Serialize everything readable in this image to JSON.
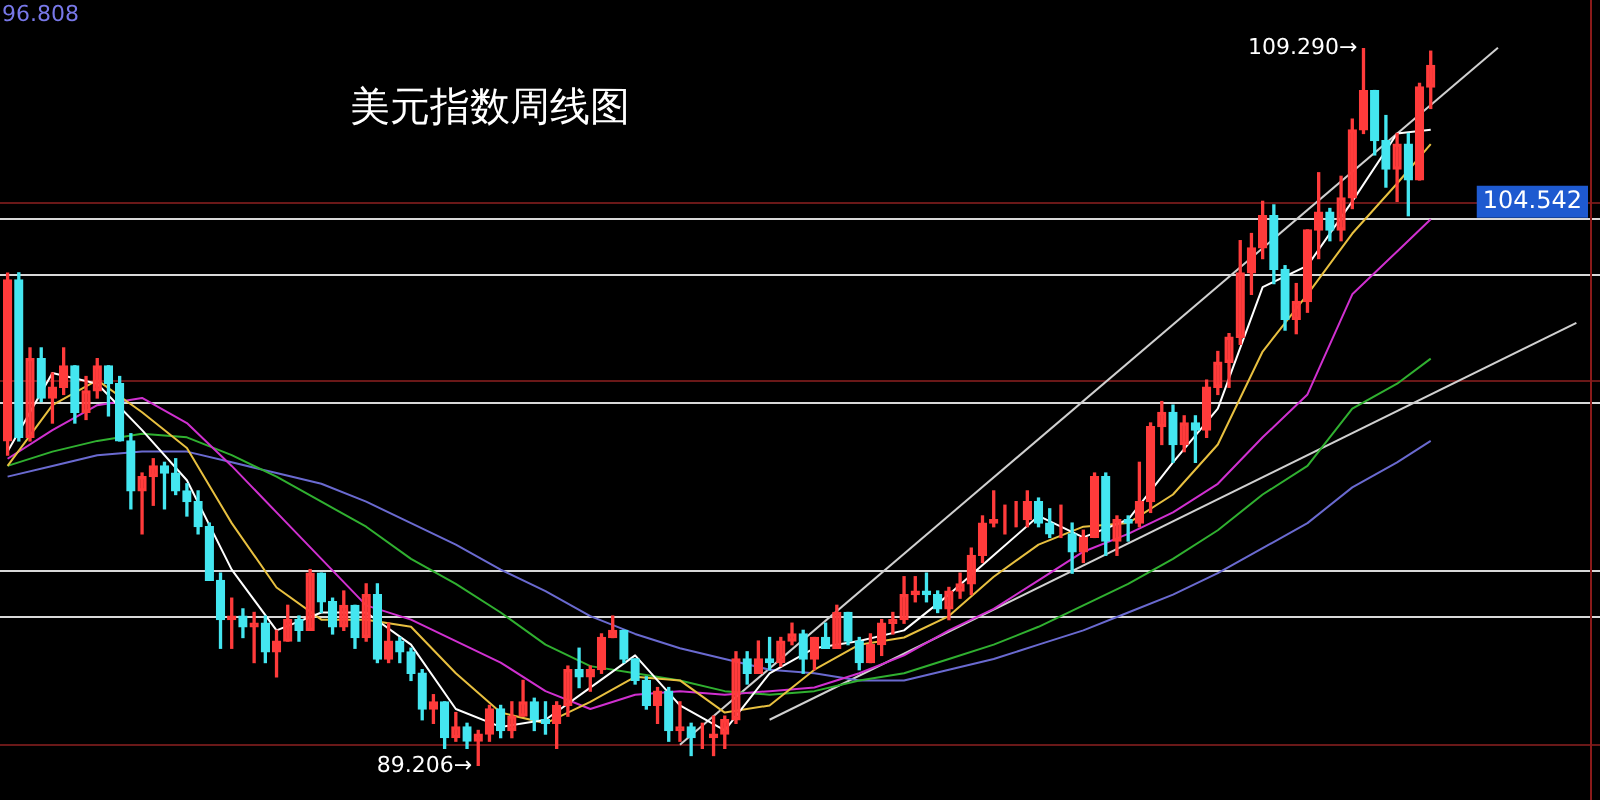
{
  "chart_data": {
    "type": "candlestick",
    "title": "美元指数周线图",
    "categories": [
      null,
      null,
      null,
      null,
      null,
      null,
      null,
      null,
      null,
      null,
      null,
      null,
      null,
      null,
      null,
      null,
      null,
      null,
      null,
      null,
      null,
      null,
      null,
      null,
      null,
      null,
      null,
      null,
      null,
      null,
      null,
      null,
      null,
      null,
      null,
      null,
      null,
      null,
      null,
      null,
      null,
      null,
      null,
      null,
      null,
      null,
      null,
      null,
      null,
      null,
      null,
      null,
      null,
      null,
      null,
      null,
      null,
      null,
      null,
      null,
      null,
      null,
      null,
      null,
      null,
      null,
      null,
      null,
      null,
      null,
      null,
      null,
      null,
      null,
      null,
      null,
      null,
      null,
      null,
      null,
      null,
      null,
      null,
      null,
      null,
      null,
      null,
      null,
      null,
      null,
      null,
      null,
      null,
      null,
      null,
      null,
      null,
      null,
      null,
      null,
      null,
      null,
      null,
      null,
      null,
      null,
      null,
      null,
      null,
      null,
      null,
      null,
      null,
      null,
      null,
      null,
      null,
      null,
      null,
      null,
      null,
      null,
      null,
      null,
      null,
      null,
      null,
      null,
      null,
      null,
      null,
      null,
      null,
      null,
      null,
      null,
      null,
      null,
      null,
      null,
      null
    ],
    "ohlc": [
      [
        98.3,
        102.99,
        97.9,
        102.8
      ],
      [
        102.8,
        103.0,
        98.3,
        98.4
      ],
      [
        98.4,
        100.9,
        98.3,
        100.6
      ],
      [
        100.6,
        100.9,
        99.4,
        99.5
      ],
      [
        99.5,
        100.2,
        98.8,
        99.8
      ],
      [
        99.8,
        100.9,
        99.6,
        100.4
      ],
      [
        100.4,
        100.4,
        98.8,
        99.1
      ],
      [
        99.1,
        100.1,
        98.9,
        99.7
      ],
      [
        99.7,
        100.6,
        99.5,
        100.4
      ],
      [
        100.4,
        100.4,
        99.0,
        99.9
      ],
      [
        99.9,
        100.1,
        98.3,
        98.3
      ],
      [
        98.3,
        98.5,
        96.4,
        96.9
      ],
      [
        96.9,
        97.4,
        95.7,
        97.3
      ],
      [
        97.3,
        97.8,
        96.5,
        97.6
      ],
      [
        97.6,
        97.7,
        96.4,
        97.4
      ],
      [
        97.4,
        97.8,
        96.8,
        96.9
      ],
      [
        96.9,
        97.1,
        96.2,
        96.6
      ],
      [
        96.6,
        96.9,
        95.7,
        95.9
      ],
      [
        95.9,
        96.0,
        94.4,
        94.4
      ],
      [
        94.4,
        94.6,
        92.5,
        93.3
      ],
      [
        93.3,
        93.9,
        92.5,
        93.4
      ],
      [
        93.4,
        93.6,
        92.8,
        93.1
      ],
      [
        93.1,
        93.5,
        92.1,
        93.2
      ],
      [
        93.2,
        93.4,
        92.1,
        92.4
      ],
      [
        92.4,
        93.0,
        91.7,
        92.7
      ],
      [
        92.7,
        93.7,
        92.7,
        93.3
      ],
      [
        93.3,
        93.4,
        92.7,
        93.0
      ],
      [
        93.0,
        94.7,
        93.0,
        94.6
      ],
      [
        94.6,
        94.6,
        93.5,
        93.8
      ],
      [
        93.8,
        93.9,
        92.9,
        93.1
      ],
      [
        93.1,
        94.1,
        93.0,
        93.7
      ],
      [
        93.7,
        93.7,
        92.5,
        92.8
      ],
      [
        92.8,
        94.3,
        92.7,
        94.0
      ],
      [
        94.0,
        94.3,
        92.1,
        92.2
      ],
      [
        92.2,
        93.2,
        92.1,
        92.7
      ],
      [
        92.7,
        92.8,
        92.1,
        92.4
      ],
      [
        92.4,
        92.5,
        91.6,
        91.8
      ],
      [
        91.8,
        91.9,
        90.5,
        90.8
      ],
      [
        90.8,
        91.2,
        90.4,
        91.0
      ],
      [
        91.0,
        91.0,
        89.7,
        90.0
      ],
      [
        90.0,
        90.7,
        89.9,
        90.3
      ],
      [
        90.3,
        90.4,
        89.7,
        89.9
      ],
      [
        89.9,
        90.2,
        89.206,
        90.1
      ],
      [
        90.1,
        90.9,
        89.9,
        90.8
      ],
      [
        90.8,
        90.9,
        90.0,
        90.2
      ],
      [
        90.2,
        91.0,
        90.0,
        90.6
      ],
      [
        90.6,
        91.6,
        90.6,
        91.0
      ],
      [
        91.0,
        91.1,
        90.2,
        90.5
      ],
      [
        90.5,
        91.0,
        90.1,
        90.4
      ],
      [
        90.4,
        91.0,
        89.7,
        90.9
      ],
      [
        90.9,
        92.0,
        90.6,
        91.9
      ],
      [
        91.9,
        92.5,
        91.4,
        91.7
      ],
      [
        91.7,
        92.0,
        91.3,
        91.9
      ],
      [
        91.9,
        92.9,
        91.8,
        92.8
      ],
      [
        92.8,
        93.4,
        92.8,
        93.0
      ],
      [
        93.0,
        93.0,
        92.1,
        92.2
      ],
      [
        92.2,
        92.2,
        91.5,
        91.6
      ],
      [
        91.6,
        91.7,
        90.8,
        90.9
      ],
      [
        90.9,
        91.4,
        90.4,
        91.3
      ],
      [
        91.3,
        91.4,
        89.9,
        90.2
      ],
      [
        90.2,
        91.0,
        89.9,
        90.3
      ],
      [
        90.3,
        90.4,
        89.5,
        90.0
      ],
      [
        90.0,
        90.4,
        89.7,
        90.0
      ],
      [
        90.0,
        90.6,
        89.5,
        90.1
      ],
      [
        90.1,
        90.6,
        89.7,
        90.5
      ],
      [
        90.5,
        92.4,
        90.4,
        92.2
      ],
      [
        92.2,
        92.4,
        91.5,
        91.8
      ],
      [
        91.8,
        92.7,
        91.8,
        92.2
      ],
      [
        92.2,
        92.8,
        91.9,
        92.1
      ],
      [
        92.1,
        92.8,
        92.0,
        92.7
      ],
      [
        92.7,
        93.2,
        92.6,
        92.9
      ],
      [
        92.9,
        93.0,
        91.8,
        92.2
      ],
      [
        92.2,
        92.8,
        91.9,
        92.8
      ],
      [
        92.8,
        93.2,
        92.5,
        92.5
      ],
      [
        92.5,
        93.7,
        92.5,
        93.5
      ],
      [
        93.5,
        93.5,
        92.6,
        92.7
      ],
      [
        92.7,
        92.8,
        91.9,
        92.1
      ],
      [
        92.1,
        92.9,
        92.1,
        92.6
      ],
      [
        92.6,
        93.3,
        92.3,
        93.2
      ],
      [
        93.2,
        93.5,
        92.9,
        93.3
      ],
      [
        93.3,
        94.5,
        93.2,
        94.0
      ],
      [
        94.0,
        94.5,
        93.8,
        94.1
      ],
      [
        94.1,
        94.6,
        93.8,
        94.0
      ],
      [
        94.0,
        94.1,
        93.5,
        93.6
      ],
      [
        93.6,
        94.2,
        93.3,
        94.1
      ],
      [
        94.1,
        94.6,
        93.9,
        94.3
      ],
      [
        94.3,
        95.3,
        94.0,
        95.1
      ],
      [
        95.1,
        96.2,
        94.9,
        96.0
      ],
      [
        96.0,
        96.9,
        95.9,
        96.1
      ],
      [
        96.1,
        96.5,
        95.7,
        96.1
      ],
      [
        96.1,
        96.6,
        95.9,
        96.1
      ],
      [
        96.1,
        96.9,
        95.9,
        96.6
      ],
      [
        96.6,
        96.7,
        95.9,
        96.0
      ],
      [
        96.0,
        96.4,
        95.6,
        95.7
      ],
      [
        95.7,
        96.5,
        95.6,
        95.7
      ],
      [
        95.7,
        96.0,
        94.6,
        95.2
      ],
      [
        95.2,
        95.8,
        94.9,
        95.6
      ],
      [
        95.6,
        97.4,
        95.6,
        97.3
      ],
      [
        97.3,
        97.4,
        95.1,
        95.5
      ],
      [
        95.5,
        96.2,
        95.1,
        96.1
      ],
      [
        96.1,
        96.2,
        95.5,
        96.0
      ],
      [
        96.0,
        97.7,
        95.9,
        96.6
      ],
      [
        96.6,
        98.8,
        96.3,
        98.7
      ],
      [
        98.7,
        99.4,
        98.2,
        99.1
      ],
      [
        99.1,
        99.3,
        97.7,
        98.2
      ],
      [
        98.2,
        99.0,
        98.0,
        98.8
      ],
      [
        98.8,
        99.0,
        97.7,
        98.6
      ],
      [
        98.6,
        100.0,
        98.4,
        99.8
      ],
      [
        99.8,
        100.8,
        99.6,
        100.5
      ],
      [
        100.5,
        101.3,
        99.8,
        101.2
      ],
      [
        101.2,
        103.9,
        101.0,
        103.0
      ],
      [
        103.0,
        104.1,
        102.4,
        103.7
      ],
      [
        103.7,
        105.0,
        103.4,
        104.6
      ],
      [
        104.6,
        104.9,
        102.7,
        103.1
      ],
      [
        103.1,
        103.2,
        101.4,
        101.7
      ],
      [
        101.7,
        102.7,
        101.3,
        102.2
      ],
      [
        102.2,
        104.2,
        101.9,
        104.2
      ],
      [
        104.2,
        105.8,
        103.4,
        104.7
      ],
      [
        104.7,
        104.8,
        103.9,
        104.2
      ],
      [
        104.2,
        105.7,
        103.9,
        105.1
      ],
      [
        105.1,
        107.3,
        104.8,
        107.0
      ],
      [
        107.0,
        109.29,
        106.9,
        108.1
      ],
      [
        108.1,
        108.1,
        106.3,
        106.7
      ],
      [
        106.7,
        107.4,
        105.4,
        105.9
      ],
      [
        105.9,
        106.9,
        105.0,
        106.6
      ],
      [
        106.6,
        106.9,
        104.6,
        105.6
      ],
      [
        105.6,
        108.3,
        105.6,
        108.2
      ],
      [
        108.2,
        109.2,
        107.6,
        108.8
      ],
      null,
      null,
      null,
      null,
      null,
      null,
      null,
      null,
      null,
      null,
      null,
      null,
      null
    ],
    "colors": [
      "#ff3b3b",
      "#44e6f0",
      "#ff3b3b",
      "#44e6f0",
      "#ff3b3b",
      "#ff3b3b",
      "#44e6f0",
      "#ff3b3b",
      "#ff3b3b",
      "#44e6f0",
      "#44e6f0",
      "#44e6f0",
      "#ff3b3b",
      "#ff3b3b",
      "#44e6f0",
      "#44e6f0",
      "#44e6f0",
      "#44e6f0",
      "#44e6f0",
      "#44e6f0",
      "#ff3b3b",
      "#44e6f0",
      "#ff3b3b",
      "#44e6f0",
      "#ff3b3b",
      "#ff3b3b",
      "#44e6f0",
      "#ff3b3b",
      "#44e6f0",
      "#44e6f0",
      "#ff3b3b",
      "#44e6f0",
      "#ff3b3b",
      "#44e6f0",
      "#ff3b3b",
      "#44e6f0",
      "#44e6f0",
      "#44e6f0",
      "#ff3b3b",
      "#44e6f0",
      "#ff3b3b",
      "#44e6f0",
      "#ff3b3b",
      "#ff3b3b",
      "#44e6f0",
      "#ff3b3b",
      "#ff3b3b",
      "#44e6f0",
      "#44e6f0",
      "#ff3b3b",
      "#ff3b3b",
      "#44e6f0",
      "#ff3b3b",
      "#ff3b3b",
      "#ff3b3b",
      "#44e6f0",
      "#44e6f0",
      "#44e6f0",
      "#ff3b3b",
      "#44e6f0",
      "#ff3b3b",
      "#44e6f0",
      "#ff3b3b",
      "#ff3b3b",
      "#ff3b3b",
      "#ff3b3b",
      "#44e6f0",
      "#ff3b3b",
      "#44e6f0",
      "#ff3b3b",
      "#ff3b3b",
      "#44e6f0",
      "#ff3b3b",
      "#44e6f0",
      "#ff3b3b",
      "#44e6f0",
      "#44e6f0",
      "#ff3b3b",
      "#ff3b3b",
      "#ff3b3b",
      "#ff3b3b",
      "#ff3b3b",
      "#44e6f0",
      "#44e6f0",
      "#ff3b3b",
      "#ff3b3b",
      "#ff3b3b",
      "#ff3b3b",
      "#ff3b3b",
      "#ff3b3b",
      "#ff3b3b",
      "#ff3b3b",
      "#44e6f0",
      "#44e6f0",
      "#ff3b3b",
      "#44e6f0",
      "#ff3b3b",
      "#ff3b3b",
      "#44e6f0",
      "#ff3b3b",
      "#44e6f0",
      "#ff3b3b",
      "#ff3b3b",
      "#ff3b3b",
      "#44e6f0",
      "#ff3b3b",
      "#44e6f0",
      "#ff3b3b",
      "#ff3b3b",
      "#ff3b3b",
      "#ff3b3b",
      "#ff3b3b",
      "#ff3b3b",
      "#44e6f0",
      "#44e6f0",
      "#ff3b3b",
      "#ff3b3b",
      "#ff3b3b",
      "#44e6f0",
      "#ff3b3b",
      "#ff3b3b",
      "#ff3b3b",
      "#44e6f0",
      "#44e6f0",
      "#ff3b3b",
      "#44e6f0",
      "#ff3b3b",
      "#ff3b3b",
      null,
      null,
      null,
      null,
      null,
      null,
      null,
      null,
      null,
      null,
      null,
      null,
      null
    ],
    "series": [
      {
        "type": "line",
        "color": "#ffffff",
        "values": [
          98.0,
          null,
          null,
          null,
          100.2,
          null,
          null,
          null,
          99.9,
          null,
          null,
          null,
          98.6,
          null,
          null,
          null,
          97.2,
          null,
          null,
          null,
          94.7,
          null,
          null,
          null,
          93.0,
          null,
          null,
          null,
          93.5,
          null,
          null,
          null,
          93.5,
          null,
          null,
          null,
          92.6,
          null,
          null,
          null,
          90.8,
          null,
          null,
          null,
          90.3,
          null,
          null,
          null,
          90.5,
          null,
          null,
          null,
          91.4,
          null,
          null,
          null,
          92.3,
          null,
          null,
          null,
          90.9,
          null,
          null,
          null,
          90.2,
          null,
          null,
          null,
          91.8,
          null,
          null,
          null,
          92.5,
          null,
          null,
          null,
          92.7,
          null,
          null,
          null,
          93.0,
          null,
          null,
          null,
          94.0,
          null,
          null,
          null,
          95.1,
          null,
          null,
          null,
          96.2,
          null,
          null,
          null,
          95.6,
          null,
          null,
          null,
          96.1,
          null,
          null,
          null,
          97.7,
          null,
          null,
          null,
          99.2,
          null,
          null,
          null,
          102.6,
          null,
          null,
          null,
          103.2,
          null,
          null,
          null,
          105.0,
          null,
          null,
          null,
          106.9,
          null,
          null,
          107.0,
          null,
          null,
          null,
          null,
          null,
          null,
          null,
          null,
          null,
          null,
          null,
          null,
          null
        ]
      },
      {
        "type": "line",
        "color": "#e8c040",
        "values": [
          97.6,
          null,
          null,
          null,
          99.3,
          null,
          null,
          null,
          100.0,
          null,
          null,
          null,
          99.1,
          null,
          null,
          null,
          98.1,
          null,
          null,
          null,
          96.0,
          null,
          null,
          null,
          94.2,
          null,
          null,
          null,
          93.3,
          null,
          null,
          null,
          93.3,
          null,
          null,
          null,
          93.1,
          null,
          null,
          null,
          91.8,
          null,
          null,
          null,
          90.7,
          null,
          null,
          null,
          90.4,
          null,
          null,
          null,
          91.0,
          null,
          null,
          null,
          91.7,
          null,
          null,
          null,
          91.6,
          null,
          null,
          null,
          90.7,
          null,
          null,
          null,
          90.9,
          null,
          null,
          null,
          91.9,
          null,
          null,
          null,
          92.6,
          null,
          null,
          null,
          92.8,
          null,
          null,
          null,
          93.4,
          null,
          null,
          null,
          94.5,
          null,
          null,
          null,
          95.4,
          null,
          null,
          null,
          95.9,
          null,
          null,
          null,
          96.0,
          null,
          null,
          null,
          96.8,
          null,
          null,
          null,
          98.2,
          null,
          null,
          null,
          100.8,
          null,
          null,
          null,
          102.4,
          null,
          null,
          null,
          104.1,
          null,
          null,
          null,
          105.5,
          null,
          null,
          106.6,
          null,
          null,
          null,
          null,
          null,
          null,
          null,
          null,
          null,
          null,
          null,
          null,
          null
        ]
      },
      {
        "type": "line",
        "color": "#d030d0",
        "values": [
          97.8,
          null,
          null,
          null,
          98.6,
          null,
          null,
          null,
          99.3,
          null,
          null,
          null,
          99.5,
          null,
          null,
          null,
          98.8,
          null,
          null,
          null,
          97.6,
          null,
          null,
          null,
          96.3,
          null,
          null,
          null,
          95.0,
          null,
          null,
          null,
          93.7,
          null,
          null,
          null,
          93.3,
          null,
          null,
          null,
          92.7,
          null,
          null,
          null,
          92.1,
          null,
          null,
          null,
          91.3,
          null,
          null,
          null,
          90.8,
          null,
          null,
          null,
          91.2,
          null,
          null,
          null,
          91.3,
          null,
          null,
          null,
          91.2,
          null,
          null,
          null,
          91.3,
          null,
          null,
          null,
          91.4,
          null,
          null,
          null,
          91.8,
          null,
          null,
          null,
          92.3,
          null,
          null,
          null,
          93.0,
          null,
          null,
          null,
          93.6,
          null,
          null,
          null,
          94.4,
          null,
          null,
          null,
          95.2,
          null,
          null,
          null,
          95.7,
          null,
          null,
          null,
          96.3,
          null,
          null,
          null,
          97.1,
          null,
          null,
          null,
          98.4,
          null,
          null,
          null,
          99.6,
          null,
          null,
          null,
          102.4,
          null,
          null,
          null,
          103.6,
          null,
          null,
          104.5,
          null,
          null,
          null,
          null,
          null,
          null,
          null,
          null,
          null,
          null,
          null,
          null,
          null
        ]
      },
      {
        "type": "line",
        "color": "#30b030",
        "values": [
          97.6,
          null,
          null,
          null,
          98.0,
          null,
          null,
          null,
          98.3,
          null,
          null,
          null,
          98.5,
          null,
          null,
          null,
          98.4,
          null,
          null,
          null,
          97.9,
          null,
          null,
          null,
          97.3,
          null,
          null,
          null,
          96.6,
          null,
          null,
          null,
          95.9,
          null,
          null,
          null,
          95.0,
          null,
          null,
          null,
          94.3,
          null,
          null,
          null,
          93.5,
          null,
          null,
          null,
          92.6,
          null,
          null,
          null,
          92.0,
          null,
          null,
          null,
          91.8,
          null,
          null,
          null,
          91.6,
          null,
          null,
          null,
          91.3,
          null,
          null,
          null,
          91.2,
          null,
          null,
          null,
          91.3,
          null,
          null,
          null,
          91.6,
          null,
          null,
          null,
          91.8,
          null,
          null,
          null,
          92.2,
          null,
          null,
          null,
          92.6,
          null,
          null,
          null,
          93.1,
          null,
          null,
          null,
          93.7,
          null,
          null,
          null,
          94.3,
          null,
          null,
          null,
          95.0,
          null,
          null,
          null,
          95.8,
          null,
          null,
          null,
          96.8,
          null,
          null,
          null,
          97.6,
          null,
          null,
          null,
          99.2,
          null,
          null,
          null,
          99.9,
          null,
          null,
          100.6,
          null,
          null,
          null,
          null,
          null,
          null,
          null,
          null,
          null,
          null,
          null,
          null,
          null
        ]
      },
      {
        "type": "line",
        "color": "#6a6ad0",
        "values": [
          97.3,
          null,
          null,
          null,
          97.6,
          null,
          null,
          null,
          97.9,
          null,
          null,
          null,
          98.0,
          null,
          null,
          null,
          98.0,
          null,
          null,
          null,
          97.7,
          null,
          null,
          null,
          97.4,
          null,
          null,
          null,
          97.1,
          null,
          null,
          null,
          96.6,
          null,
          null,
          null,
          96.0,
          null,
          null,
          null,
          95.4,
          null,
          null,
          null,
          94.7,
          null,
          null,
          null,
          94.1,
          null,
          null,
          null,
          93.4,
          null,
          null,
          null,
          92.9,
          null,
          null,
          null,
          92.5,
          null,
          null,
          null,
          92.2,
          null,
          null,
          null,
          91.9,
          null,
          null,
          null,
          91.8,
          null,
          null,
          null,
          91.6,
          null,
          null,
          null,
          91.6,
          null,
          null,
          null,
          91.9,
          null,
          null,
          null,
          92.2,
          null,
          null,
          null,
          92.6,
          null,
          null,
          null,
          93.0,
          null,
          null,
          null,
          93.5,
          null,
          null,
          null,
          94.0,
          null,
          null,
          null,
          94.6,
          null,
          null,
          null,
          95.3,
          null,
          null,
          null,
          96.0,
          null,
          null,
          null,
          97.0,
          null,
          null,
          null,
          97.7,
          null,
          null,
          98.3,
          null,
          null,
          null,
          null,
          null,
          null,
          null,
          null,
          null,
          null,
          null,
          null,
          null
        ]
      },
      {
        "type": "line",
        "color": "#d0d0d0",
        "values": [
          null,
          null,
          null,
          null,
          null,
          null,
          null,
          null,
          null,
          null,
          null,
          null,
          null,
          null,
          null,
          null,
          null,
          null,
          null,
          null,
          null,
          null,
          null,
          null,
          null,
          null,
          null,
          null,
          null,
          null,
          null,
          null,
          null,
          null,
          null,
          null,
          null,
          null,
          null,
          null,
          null,
          null,
          null,
          null,
          null,
          null,
          null,
          null,
          null,
          null,
          null,
          null,
          null,
          null,
          null,
          null,
          null,
          null,
          null,
          null,
          89.8,
          null,
          null,
          null,
          null,
          null,
          null,
          null,
          null,
          null,
          null,
          null,
          null,
          null,
          null,
          null,
          null,
          null,
          null,
          null,
          null,
          null,
          null,
          null,
          null,
          null,
          null,
          null,
          null,
          null,
          null,
          null,
          null,
          null,
          null,
          null,
          null,
          null,
          null,
          null,
          null,
          null,
          null,
          null,
          null,
          null,
          null,
          null,
          null,
          null,
          null,
          null,
          null,
          null,
          null,
          null,
          null,
          null,
          null,
          null,
          null,
          null,
          null,
          null,
          null,
          null,
          null,
          null,
          null,
          null,
          null,
          null,
          null,
          109.3,
          null,
          null,
          null,
          null,
          null,
          null,
          null
        ]
      },
      {
        "type": "line",
        "color": "#d0d0d0",
        "values": [
          null,
          null,
          null,
          null,
          null,
          null,
          null,
          null,
          null,
          null,
          null,
          null,
          null,
          null,
          null,
          null,
          null,
          null,
          null,
          null,
          null,
          null,
          null,
          null,
          null,
          null,
          null,
          null,
          null,
          null,
          null,
          null,
          null,
          null,
          null,
          null,
          null,
          null,
          null,
          null,
          null,
          null,
          null,
          null,
          null,
          null,
          null,
          null,
          null,
          null,
          null,
          null,
          null,
          null,
          null,
          null,
          null,
          null,
          null,
          null,
          null,
          null,
          null,
          null,
          null,
          null,
          null,
          null,
          90.5,
          null,
          null,
          null,
          null,
          null,
          null,
          null,
          null,
          null,
          null,
          null,
          null,
          null,
          null,
          null,
          null,
          null,
          null,
          null,
          null,
          null,
          null,
          null,
          null,
          null,
          null,
          null,
          null,
          null,
          null,
          null,
          null,
          null,
          null,
          null,
          null,
          null,
          null,
          null,
          null,
          null,
          null,
          null,
          null,
          null,
          null,
          null,
          null,
          null,
          null,
          null,
          null,
          null,
          null,
          null,
          null,
          null,
          null,
          null,
          null,
          null,
          null,
          null,
          null,
          null,
          null,
          null,
          null,
          null,
          null,
          null,
          101.6
        ]
      }
    ],
    "ref_lines": [
      {
        "axis": "y",
        "value": 104.542,
        "label": "104.542",
        "color": "#d8d8d8"
      },
      {
        "axis": "y",
        "value": 105.0,
        "color": "#6a1818"
      },
      {
        "axis": "y",
        "value": 102.97,
        "color": "#d8d8d8"
      },
      {
        "axis": "y",
        "value": 100.0,
        "color": "#6a1818"
      },
      {
        "axis": "y",
        "value": 99.4,
        "color": "#d8d8d8"
      },
      {
        "axis": "y",
        "value": 94.7,
        "color": "#d8d8d8"
      },
      {
        "axis": "y",
        "value": 93.4,
        "color": "#d8d8d8"
      },
      {
        "axis": "y",
        "value": 89.8,
        "color": "#6a1818"
      }
    ],
    "annotations": [
      "96.808",
      "109.290→",
      "89.206→"
    ],
    "tick_labels": false,
    "legend": false
  }
}
